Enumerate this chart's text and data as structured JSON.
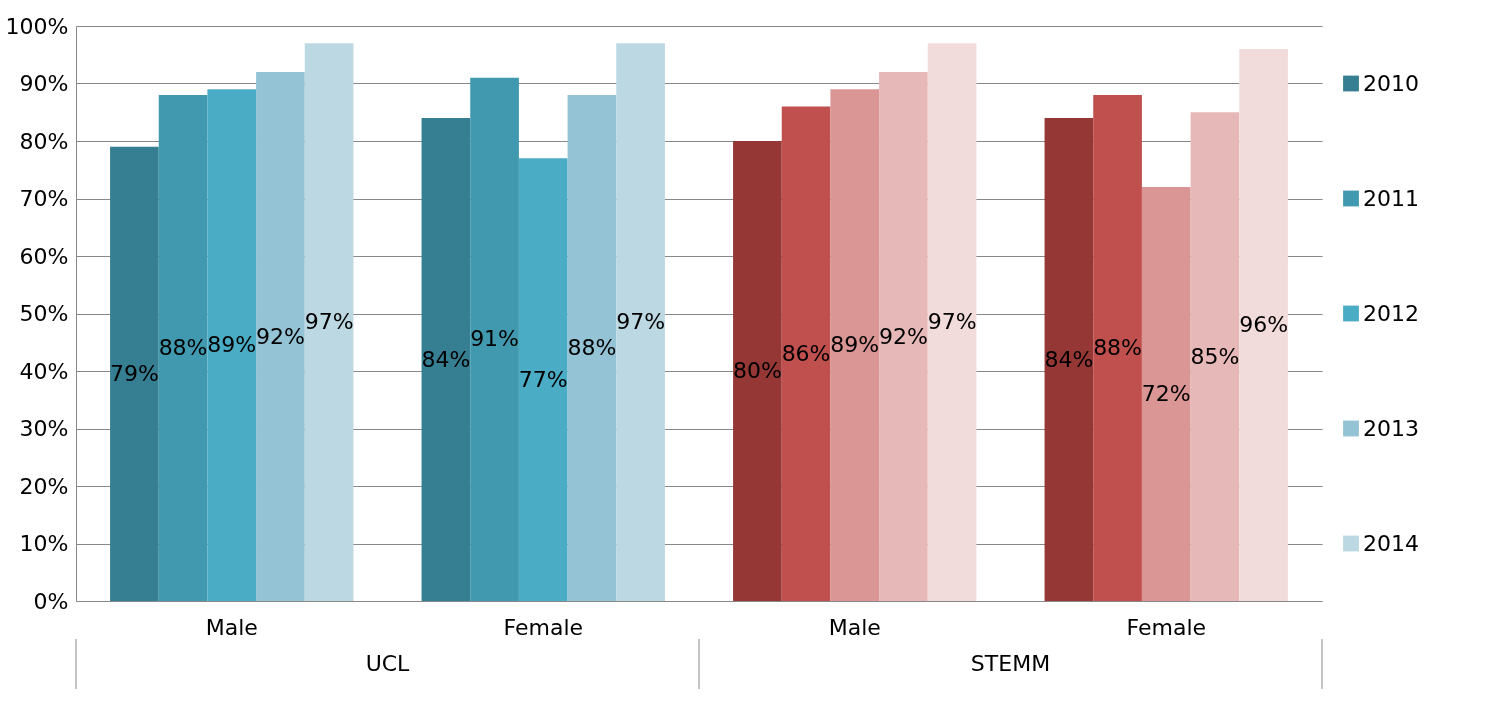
{
  "chart_data": {
    "type": "bar",
    "categories": [
      "Male",
      "Female",
      "Male",
      "Female"
    ],
    "annotations": [
      "UCL",
      "STEMM"
    ],
    "series": [
      {
        "name": "2010",
        "color": "#367f93",
        "colors": [
          "#367f93",
          "#367f93",
          "#953735",
          "#953735"
        ],
        "values": [
          79,
          84,
          80,
          84
        ],
        "value_labels": [
          "79%",
          "84%",
          "80%",
          "84%"
        ]
      },
      {
        "name": "2011",
        "color": "#4199b0",
        "colors": [
          "#4199b0",
          "#4199b0",
          "#c0504d",
          "#c0504d"
        ],
        "values": [
          88,
          91,
          86,
          88
        ],
        "value_labels": [
          "88%",
          "91%",
          "86%",
          "88%"
        ]
      },
      {
        "name": "2012",
        "color": "#4bacc6",
        "colors": [
          "#4bacc6",
          "#4bacc6",
          "#d99694",
          "#d99694"
        ],
        "values": [
          89,
          77,
          89,
          72
        ],
        "value_labels": [
          "89%",
          "77%",
          "89%",
          "72%"
        ]
      },
      {
        "name": "2013",
        "color": "#93c3d4",
        "colors": [
          "#93c3d4",
          "#93c3d4",
          "#e6b9b8",
          "#e6b9b8"
        ],
        "values": [
          92,
          88,
          92,
          85
        ],
        "value_labels": [
          "92%",
          "88%",
          "92%",
          "85%"
        ]
      },
      {
        "name": "2014",
        "color": "#bcd8e3",
        "colors": [
          "#bcd8e3",
          "#bcd8e3",
          "#f2dcdb",
          "#f2dcdb"
        ],
        "values": [
          97,
          97,
          97,
          96
        ],
        "value_labels": [
          "97%",
          "97%",
          "97%",
          "96%"
        ]
      }
    ],
    "ylim": [
      0,
      100
    ],
    "yticks": [
      {
        "value": 0,
        "label": "0%"
      },
      {
        "value": 10,
        "label": "10%"
      },
      {
        "value": 20,
        "label": "20%"
      },
      {
        "value": 30,
        "label": "30%"
      },
      {
        "value": 40,
        "label": "40%"
      },
      {
        "value": 50,
        "label": "50%"
      },
      {
        "value": 60,
        "label": "60%"
      },
      {
        "value": 70,
        "label": "70%"
      },
      {
        "value": 80,
        "label": "80%"
      },
      {
        "value": 90,
        "label": "90%"
      },
      {
        "value": 100,
        "label": "100%"
      }
    ],
    "grid": "y",
    "legend": "right"
  }
}
